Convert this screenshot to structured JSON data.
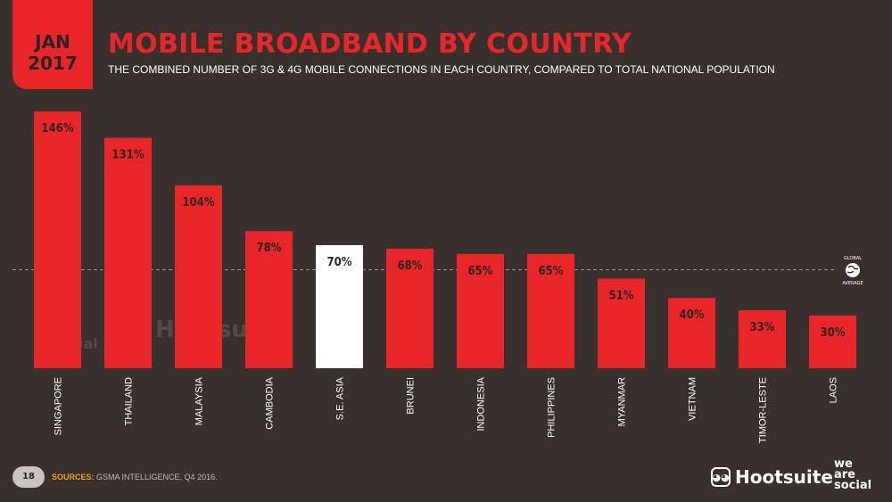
{
  "header": {
    "month": "JAN",
    "year": "2017",
    "title": "MOBILE BROADBAND BY COUNTRY",
    "subtitle": "THE COMBINED NUMBER OF 3G & 4G MOBILE CONNECTIONS IN EACH COUNTRY, COMPARED TO TOTAL NATIONAL POPULATION"
  },
  "colors": {
    "background": "#38302d",
    "bar": "#e8262a",
    "highlight_bar": "#ffffff",
    "label_text": "#2d2421"
  },
  "chart_data": {
    "type": "bar",
    "categories": [
      "SINGAPORE",
      "THAILAND",
      "MALAYSIA",
      "CAMBODIA",
      "S.E. ASIA",
      "BRUNEI",
      "INDONESIA",
      "PHILIPPINES",
      "MYANMAR",
      "VIETNAM",
      "TIMOR-LESTE",
      "LAOS"
    ],
    "values": [
      146,
      131,
      104,
      78,
      70,
      68,
      65,
      65,
      51,
      40,
      33,
      30
    ],
    "value_labels": [
      "146%",
      "131%",
      "104%",
      "78%",
      "70%",
      "68%",
      "65%",
      "65%",
      "51%",
      "40%",
      "33%",
      "30%"
    ],
    "highlight_index": 4,
    "reference_line": {
      "value": 56,
      "label_top": "GLOBAL",
      "label_bottom": "AVERAGE"
    },
    "ylim": [
      0,
      146
    ]
  },
  "footer": {
    "page_number": "18",
    "sources_label": "SOURCES:",
    "sources_text": "GSMA INTELLIGENCE, Q4 2016.",
    "hootsuite": "Hootsuite",
    "was_line1": "we",
    "was_line2": "are",
    "was_line3": "social"
  },
  "watermark": {
    "was_line1": "we",
    "was_line2": "are",
    "was_line3": "social",
    "hootsuite": "Hootsuite"
  }
}
